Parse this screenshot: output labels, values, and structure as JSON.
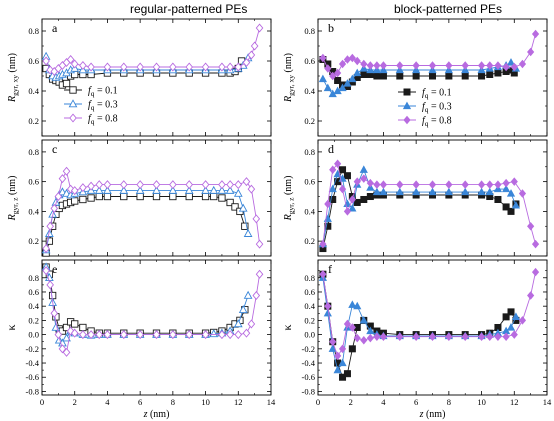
{
  "column_titles": [
    "regular-patterned PEs",
    "block-patterned PEs"
  ],
  "shared": {
    "xlabel": "z (nm)",
    "xlim": [
      0,
      14
    ],
    "xticks": [
      0,
      2,
      4,
      6,
      8,
      10,
      12,
      14
    ],
    "legend_labels": [
      "f q = 0.1",
      "f q = 0.3",
      "f q = 0.8"
    ],
    "series_colors": [
      "#1a1a1a",
      "#3a86d8",
      "#b86be0"
    ]
  },
  "chart_data": [
    {
      "type": "line",
      "panel": "a",
      "ylabel": "R gyr, xy (nm)",
      "ylim": [
        0.1,
        0.88
      ],
      "yticks": [
        0.2,
        0.4,
        0.6,
        0.8
      ],
      "legend": true,
      "series": [
        {
          "name": "fq = 0.1",
          "marker": "open-square",
          "x": [
            0.25,
            0.45,
            0.65,
            0.85,
            1.05,
            1.25,
            1.5,
            1.75,
            2,
            2.5,
            3,
            4,
            5,
            6,
            7,
            8,
            9,
            10,
            11,
            11.5,
            11.8,
            12,
            12.2
          ],
          "y": [
            0.55,
            0.51,
            0.48,
            0.47,
            0.46,
            0.44,
            0.45,
            0.5,
            0.51,
            0.51,
            0.51,
            0.52,
            0.52,
            0.52,
            0.52,
            0.52,
            0.52,
            0.52,
            0.52,
            0.52,
            0.53,
            0.55,
            0.6
          ]
        },
        {
          "name": "fq = 0.3",
          "marker": "open-triangle",
          "x": [
            0.25,
            0.45,
            0.65,
            0.85,
            1.05,
            1.25,
            1.5,
            1.75,
            2,
            2.5,
            3,
            4,
            5,
            6,
            7,
            8,
            9,
            10,
            11,
            11.5,
            12,
            12.3,
            12.6
          ],
          "y": [
            0.63,
            0.54,
            0.5,
            0.49,
            0.5,
            0.51,
            0.52,
            0.54,
            0.55,
            0.54,
            0.54,
            0.54,
            0.54,
            0.54,
            0.54,
            0.54,
            0.54,
            0.54,
            0.54,
            0.54,
            0.55,
            0.57,
            0.62
          ]
        },
        {
          "name": "fq = 0.8",
          "marker": "open-diamond",
          "x": [
            0.25,
            0.5,
            0.75,
            1,
            1.25,
            1.5,
            1.75,
            2,
            2.5,
            3,
            4,
            5,
            6,
            7,
            8,
            9,
            10,
            11,
            11.5,
            12,
            12.5,
            12.8,
            13,
            13.3
          ],
          "y": [
            0.6,
            0.54,
            0.53,
            0.55,
            0.57,
            0.59,
            0.61,
            0.58,
            0.57,
            0.56,
            0.56,
            0.56,
            0.56,
            0.56,
            0.56,
            0.56,
            0.56,
            0.56,
            0.56,
            0.56,
            0.59,
            0.64,
            0.7,
            0.82
          ]
        }
      ]
    },
    {
      "type": "line",
      "panel": "b",
      "ylabel": "R gyr, xy (nm)",
      "ylim": [
        0.1,
        0.88
      ],
      "yticks": [
        0.2,
        0.4,
        0.6,
        0.8
      ],
      "legend": true,
      "series": [
        {
          "name": "fq = 0.1",
          "marker": "filled-square",
          "x": [
            0.3,
            0.6,
            0.9,
            1.2,
            1.5,
            1.8,
            2.1,
            2.4,
            2.8,
            3.2,
            3.6,
            4,
            5,
            6,
            7,
            8,
            9,
            10,
            10.5,
            11,
            11.5,
            11.8,
            12
          ],
          "y": [
            0.61,
            0.58,
            0.53,
            0.47,
            0.44,
            0.43,
            0.46,
            0.49,
            0.51,
            0.51,
            0.5,
            0.5,
            0.5,
            0.5,
            0.5,
            0.5,
            0.5,
            0.5,
            0.51,
            0.52,
            0.53,
            0.54,
            0.52
          ]
        },
        {
          "name": "fq = 0.3",
          "marker": "filled-triangle",
          "x": [
            0.3,
            0.6,
            0.9,
            1.2,
            1.5,
            1.8,
            2.1,
            2.4,
            2.8,
            3.2,
            3.6,
            4,
            5,
            6,
            7,
            8,
            9,
            10,
            10.5,
            11,
            11.5,
            11.8,
            12.1
          ],
          "y": [
            0.48,
            0.42,
            0.38,
            0.4,
            0.42,
            0.45,
            0.48,
            0.52,
            0.55,
            0.54,
            0.54,
            0.54,
            0.54,
            0.54,
            0.54,
            0.54,
            0.54,
            0.54,
            0.55,
            0.56,
            0.57,
            0.59,
            0.55
          ]
        },
        {
          "name": "fq = 0.8",
          "marker": "filled-diamond",
          "x": [
            0.3,
            0.6,
            0.9,
            1.2,
            1.5,
            1.8,
            2.1,
            2.4,
            2.8,
            3.2,
            3.6,
            4,
            5,
            6,
            7,
            8,
            9,
            10,
            10.5,
            11,
            11.5,
            12,
            12.5,
            13,
            13.3
          ],
          "y": [
            0.62,
            0.55,
            0.5,
            0.52,
            0.58,
            0.61,
            0.62,
            0.6,
            0.58,
            0.57,
            0.57,
            0.57,
            0.57,
            0.57,
            0.57,
            0.57,
            0.57,
            0.57,
            0.57,
            0.57,
            0.56,
            0.56,
            0.58,
            0.66,
            0.78
          ]
        }
      ]
    },
    {
      "type": "line",
      "panel": "c",
      "ylabel": "R gyr, z (nm)",
      "ylim": [
        0.1,
        0.88
      ],
      "yticks": [
        0.2,
        0.4,
        0.6,
        0.8
      ],
      "series": [
        {
          "name": "fq = 0.1",
          "marker": "open-square",
          "x": [
            0.25,
            0.45,
            0.65,
            0.85,
            1.05,
            1.25,
            1.5,
            1.75,
            2,
            2.5,
            3,
            3.5,
            4,
            5,
            6,
            7,
            8,
            9,
            10,
            10.5,
            11,
            11.5,
            11.8,
            12.1,
            12.4
          ],
          "y": [
            0.12,
            0.2,
            0.3,
            0.38,
            0.42,
            0.44,
            0.45,
            0.46,
            0.47,
            0.48,
            0.49,
            0.5,
            0.5,
            0.5,
            0.5,
            0.5,
            0.5,
            0.5,
            0.5,
            0.5,
            0.49,
            0.46,
            0.43,
            0.4,
            0.3
          ]
        },
        {
          "name": "fq = 0.3",
          "marker": "open-triangle",
          "x": [
            0.25,
            0.45,
            0.65,
            0.85,
            1.05,
            1.25,
            1.5,
            1.75,
            2,
            2.5,
            3,
            3.5,
            4,
            5,
            6,
            7,
            8,
            9,
            10,
            10.5,
            11,
            11.5,
            12,
            12.3,
            12.6
          ],
          "y": [
            0.14,
            0.25,
            0.38,
            0.46,
            0.51,
            0.53,
            0.52,
            0.51,
            0.52,
            0.53,
            0.54,
            0.54,
            0.54,
            0.54,
            0.54,
            0.54,
            0.54,
            0.54,
            0.54,
            0.54,
            0.54,
            0.54,
            0.52,
            0.42,
            0.25
          ]
        },
        {
          "name": "fq = 0.8",
          "marker": "open-diamond",
          "x": [
            0.25,
            0.5,
            0.75,
            1,
            1.25,
            1.5,
            1.75,
            2,
            2.5,
            3,
            3.5,
            4,
            5,
            6,
            7,
            8,
            9,
            10,
            11,
            11.5,
            12,
            12.5,
            12.8,
            13.1,
            13.3
          ],
          "y": [
            0.15,
            0.3,
            0.42,
            0.5,
            0.62,
            0.67,
            0.55,
            0.54,
            0.56,
            0.57,
            0.58,
            0.58,
            0.58,
            0.58,
            0.58,
            0.58,
            0.58,
            0.58,
            0.58,
            0.58,
            0.58,
            0.6,
            0.55,
            0.35,
            0.18
          ]
        }
      ]
    },
    {
      "type": "line",
      "panel": "d",
      "ylabel": "R gyr, z (nm)",
      "ylim": [
        0.1,
        0.88
      ],
      "yticks": [
        0.2,
        0.4,
        0.6,
        0.8
      ],
      "series": [
        {
          "name": "fq = 0.1",
          "marker": "filled-square",
          "x": [
            0.3,
            0.6,
            0.9,
            1.2,
            1.5,
            1.8,
            2.1,
            2.4,
            2.8,
            3.2,
            3.6,
            4,
            5,
            6,
            7,
            8,
            9,
            10,
            10.5,
            11,
            11.5,
            11.8,
            12.1
          ],
          "y": [
            0.15,
            0.3,
            0.48,
            0.6,
            0.68,
            0.64,
            0.5,
            0.46,
            0.48,
            0.5,
            0.51,
            0.51,
            0.51,
            0.51,
            0.51,
            0.51,
            0.51,
            0.51,
            0.5,
            0.48,
            0.43,
            0.4,
            0.45
          ]
        },
        {
          "name": "fq = 0.3",
          "marker": "filled-triangle",
          "x": [
            0.3,
            0.6,
            0.9,
            1.2,
            1.5,
            1.8,
            2.1,
            2.4,
            2.8,
            3.2,
            3.6,
            4,
            5,
            6,
            7,
            8,
            9,
            10,
            10.5,
            11,
            11.5,
            11.8,
            12.1
          ],
          "y": [
            0.18,
            0.35,
            0.55,
            0.65,
            0.62,
            0.45,
            0.42,
            0.58,
            0.68,
            0.56,
            0.53,
            0.53,
            0.53,
            0.53,
            0.53,
            0.53,
            0.53,
            0.53,
            0.53,
            0.55,
            0.55,
            0.52,
            0.44
          ]
        },
        {
          "name": "fq = 0.8",
          "marker": "filled-diamond",
          "x": [
            0.3,
            0.6,
            0.9,
            1.2,
            1.5,
            1.8,
            2.1,
            2.4,
            2.8,
            3.2,
            3.6,
            4,
            5,
            6,
            7,
            8,
            9,
            10,
            10.5,
            11,
            11.5,
            12,
            12.5,
            13,
            13.3
          ],
          "y": [
            0.18,
            0.45,
            0.68,
            0.72,
            0.55,
            0.4,
            0.48,
            0.6,
            0.62,
            0.59,
            0.58,
            0.58,
            0.58,
            0.58,
            0.58,
            0.58,
            0.58,
            0.58,
            0.58,
            0.58,
            0.59,
            0.6,
            0.52,
            0.3,
            0.18
          ]
        }
      ]
    },
    {
      "type": "line",
      "panel": "e",
      "ylabel": "κ",
      "ylim": [
        -0.85,
        1.05
      ],
      "yticks": [
        -0.8,
        -0.6,
        -0.4,
        -0.2,
        0.0,
        0.2,
        0.4,
        0.6,
        0.8
      ],
      "series": [
        {
          "name": "fq = 0.1",
          "marker": "open-square",
          "x": [
            0.25,
            0.45,
            0.65,
            0.85,
            1.05,
            1.25,
            1.5,
            1.75,
            2,
            2.5,
            3,
            3.5,
            4,
            5,
            6,
            7,
            8,
            9,
            10,
            10.5,
            11,
            11.5,
            11.8,
            12.1,
            12.4
          ],
          "y": [
            0.95,
            0.85,
            0.55,
            0.25,
            0.08,
            0.05,
            0.1,
            0.18,
            0.15,
            0.1,
            0.05,
            0.02,
            0.02,
            0.02,
            0.02,
            0.02,
            0.02,
            0.02,
            0.02,
            0.03,
            0.05,
            0.1,
            0.15,
            0.2,
            0.35
          ]
        },
        {
          "name": "fq = 0.3",
          "marker": "open-triangle",
          "x": [
            0.25,
            0.45,
            0.65,
            0.85,
            1.05,
            1.25,
            1.5,
            1.75,
            2,
            2.5,
            3,
            3.5,
            4,
            5,
            6,
            7,
            8,
            9,
            10,
            10.5,
            11,
            11.5,
            12,
            12.3,
            12.6
          ],
          "y": [
            0.95,
            0.8,
            0.45,
            0.1,
            -0.08,
            -0.12,
            -0.05,
            0.05,
            0.02,
            0.0,
            -0.01,
            0.0,
            0.0,
            0.0,
            0.0,
            0.0,
            0.0,
            0.0,
            0.0,
            0.01,
            0.02,
            0.05,
            0.15,
            0.35,
            0.55
          ]
        },
        {
          "name": "fq = 0.8",
          "marker": "open-diamond",
          "x": [
            0.25,
            0.5,
            0.75,
            1,
            1.25,
            1.5,
            1.75,
            2,
            2.5,
            3,
            3.5,
            4,
            5,
            6,
            7,
            8,
            9,
            10,
            11,
            11.5,
            12,
            12.5,
            12.8,
            13.1,
            13.3
          ],
          "y": [
            0.9,
            0.7,
            0.3,
            0.0,
            -0.2,
            -0.25,
            0.05,
            0.02,
            0.0,
            0.0,
            0.0,
            0.0,
            0.0,
            0.0,
            0.0,
            0.0,
            0.0,
            0.0,
            0.0,
            0.0,
            0.0,
            0.02,
            0.15,
            0.55,
            0.85
          ]
        }
      ]
    },
    {
      "type": "line",
      "panel": "f",
      "ylabel": "κ",
      "ylim": [
        -0.85,
        1.05
      ],
      "yticks": [
        -0.8,
        -0.6,
        -0.4,
        -0.2,
        0.0,
        0.2,
        0.4,
        0.6,
        0.8
      ],
      "series": [
        {
          "name": "fq = 0.1",
          "marker": "filled-square",
          "x": [
            0.3,
            0.6,
            0.9,
            1.2,
            1.5,
            1.8,
            2.1,
            2.4,
            2.8,
            3.2,
            3.6,
            4,
            5,
            6,
            7,
            8,
            9,
            10,
            10.5,
            11,
            11.5,
            11.8,
            12.1
          ],
          "y": [
            0.85,
            0.4,
            -0.1,
            -0.4,
            -0.6,
            -0.55,
            -0.2,
            0.1,
            0.2,
            0.12,
            0.05,
            0.02,
            0.0,
            0.0,
            0.0,
            0.0,
            0.0,
            0.0,
            0.02,
            0.1,
            0.25,
            0.32,
            0.2
          ]
        },
        {
          "name": "fq = 0.3",
          "marker": "filled-triangle",
          "x": [
            0.3,
            0.6,
            0.9,
            1.2,
            1.5,
            1.8,
            2.1,
            2.4,
            2.8,
            3.2,
            3.6,
            4,
            5,
            6,
            7,
            8,
            9,
            10,
            10.5,
            11,
            11.5,
            11.8,
            12.1
          ],
          "y": [
            0.8,
            0.3,
            -0.2,
            -0.5,
            -0.4,
            0.1,
            0.42,
            0.4,
            0.2,
            0.05,
            0.0,
            -0.02,
            -0.02,
            -0.02,
            -0.02,
            -0.02,
            -0.02,
            -0.02,
            0.0,
            0.02,
            0.05,
            0.1,
            0.25
          ]
        },
        {
          "name": "fq = 0.8",
          "marker": "filled-diamond",
          "x": [
            0.3,
            0.6,
            0.9,
            1.2,
            1.5,
            1.8,
            2.1,
            2.4,
            2.8,
            3.2,
            3.6,
            4,
            5,
            6,
            7,
            8,
            9,
            10,
            10.5,
            11,
            11.5,
            12,
            12.5,
            13,
            13.3
          ],
          "y": [
            0.85,
            0.4,
            -0.1,
            -0.3,
            -0.2,
            0.15,
            0.1,
            -0.05,
            -0.08,
            -0.05,
            -0.03,
            -0.03,
            -0.03,
            -0.03,
            -0.03,
            -0.03,
            -0.03,
            -0.03,
            -0.03,
            -0.03,
            -0.03,
            0.0,
            0.2,
            0.55,
            0.88
          ]
        }
      ]
    }
  ]
}
